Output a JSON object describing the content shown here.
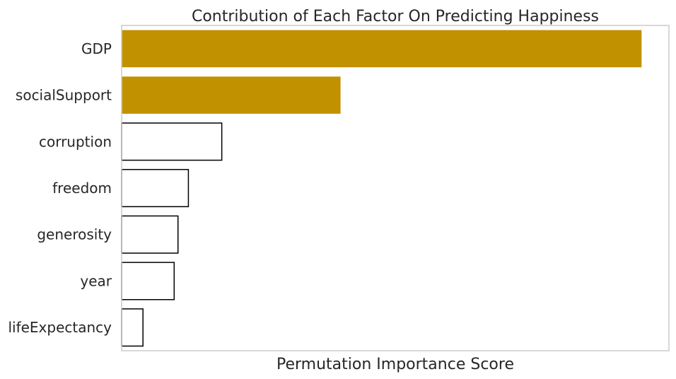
{
  "chart_data": {
    "type": "bar",
    "orientation": "horizontal",
    "title": "Contribution of Each Factor On Predicting Happiness",
    "xlabel": "Permutation Importance Score",
    "ylabel": "",
    "categories": [
      "GDP",
      "socialSupport",
      "corruption",
      "freedom",
      "generosity",
      "year",
      "lifeExpectancy"
    ],
    "values": [
      0.95,
      0.4,
      0.183,
      0.122,
      0.103,
      0.096,
      0.039
    ],
    "xlim": [
      0,
      1.0
    ],
    "grid": false,
    "legend": "none",
    "highlight_count": 2,
    "colors": {
      "highlight": "#c19100",
      "other_fill": "#ffffff",
      "other_stroke": "#000000",
      "frame": "#cccccc",
      "text": "#262626"
    }
  }
}
